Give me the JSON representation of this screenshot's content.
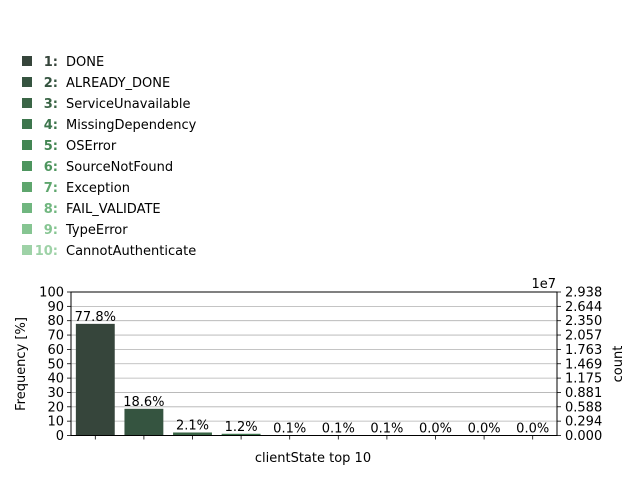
{
  "chart_data": {
    "type": "bar",
    "xlabel": "clientState top 10",
    "ylabel": "Frequency [%]",
    "y2label": "count",
    "y2_multiplier": "1e7",
    "ylim": [
      0,
      100
    ],
    "yticks": [
      "0",
      "10",
      "20",
      "30",
      "40",
      "50",
      "60",
      "70",
      "80",
      "90",
      "100"
    ],
    "y2lim": [
      0,
      2.938
    ],
    "y2ticks": [
      "0.000",
      "0.294",
      "0.588",
      "0.881",
      "1.175",
      "1.469",
      "1.763",
      "2.057",
      "2.350",
      "2.644",
      "2.938"
    ],
    "grid": "y",
    "legend_position": "top-left",
    "categories": [
      "DONE",
      "ALREADY_DONE",
      "ServiceUnavailable",
      "MissingDependency",
      "OSError",
      "SourceNotFound",
      "Exception",
      "FAIL_VALIDATE",
      "TypeError",
      "CannotAuthenticate"
    ],
    "legend_ids": [
      "1:",
      "2:",
      "3:",
      "4:",
      "5:",
      "6:",
      "7:",
      "8:",
      "9:",
      "10:"
    ],
    "values": [
      77.8,
      18.6,
      2.1,
      1.2,
      0.1,
      0.1,
      0.1,
      0.0,
      0.0,
      0.0
    ],
    "value_labels": [
      "77.8%",
      "18.6%",
      "2.1%",
      "1.2%",
      "0.1%",
      "0.1%",
      "0.1%",
      "0.0%",
      "0.0%",
      "0.0%"
    ],
    "colors": [
      "#36453b",
      "#355440",
      "#3a6546",
      "#3d764d",
      "#438653",
      "#4d955e",
      "#5ea66d",
      "#70b67f",
      "#86c592",
      "#9ed2a7"
    ]
  }
}
